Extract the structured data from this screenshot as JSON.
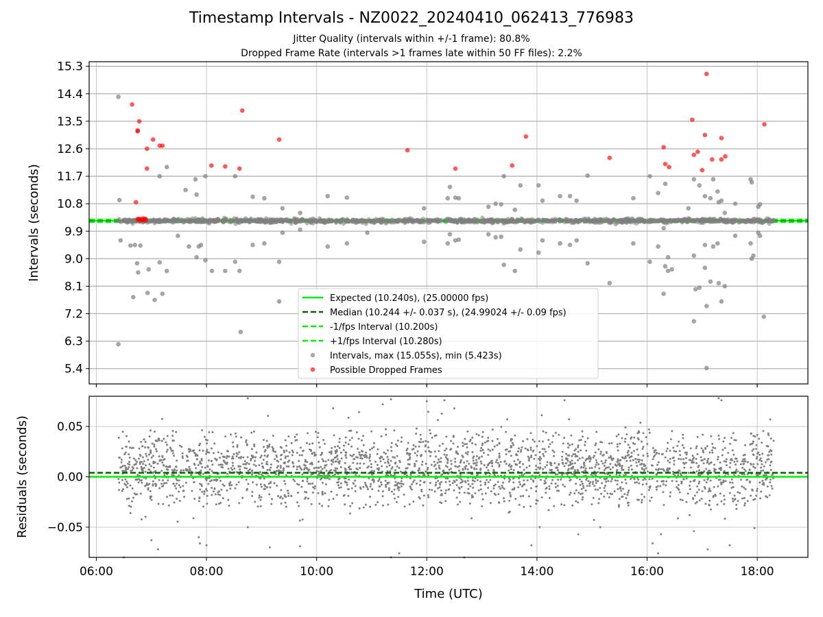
{
  "figure": {
    "title": "Timestamp Intervals - NZ0022_20240410_062413_776983",
    "subtitle_1": "Jitter Quality (intervals within +/-1 frame): 80.8%",
    "subtitle_2": "Dropped Frame Rate (intervals >1 frames late within 50 FF files): 2.2%"
  },
  "colors": {
    "expected": "#00ee00",
    "median": "#006400",
    "interval_bounds": "#00ee00",
    "intervals": "#808080",
    "dropped": "#ff0000",
    "grid": "#b0b0b0"
  },
  "chart_data": [
    {
      "type": "scatter",
      "id": "intervals",
      "ylabel": "Intervals (seconds)",
      "xlabel": "",
      "xlim_hours": [
        5.87,
        18.92
      ],
      "ylim": [
        4.9,
        15.45
      ],
      "yticks": [
        "5.4",
        "6.3",
        "7.2",
        "8.1",
        "9.0",
        "9.9",
        "10.8",
        "11.7",
        "12.6",
        "13.5",
        "14.4",
        "15.3"
      ],
      "grid": true,
      "legend_position": "lower center",
      "lines": [
        {
          "name": "Expected (10.240s), (25.00000 fps)",
          "y": 10.24,
          "style": "solid",
          "color_key": "expected"
        },
        {
          "name": "Median (10.244 +/- 0.037 s), (24.99024 +/- 0.09 fps)",
          "y": 10.244,
          "style": "dashed",
          "color_key": "median"
        },
        {
          "name": "-1/fps Interval (10.200s)",
          "y": 10.2,
          "style": "dashed",
          "color_key": "interval_bounds"
        },
        {
          "name": "+1/fps Interval (10.280s)",
          "y": 10.28,
          "style": "dashed",
          "color_key": "interval_bounds"
        }
      ],
      "series": [
        {
          "name": "Intervals, max (15.055s), min (5.423s)",
          "color_key": "intervals",
          "points": [
            [
              6.4,
              14.3
            ],
            [
              6.42,
              10.92
            ],
            [
              6.44,
              9.6
            ],
            [
              6.4,
              6.2
            ],
            [
              6.62,
              9.43
            ],
            [
              6.67,
              7.74
            ],
            [
              6.7,
              9.45
            ],
            [
              6.74,
              8.85
            ],
            [
              6.76,
              8.55
            ],
            [
              6.8,
              9.43
            ],
            [
              6.93,
              7.88
            ],
            [
              6.95,
              8.65
            ],
            [
              7.06,
              7.65
            ],
            [
              7.15,
              8.88
            ],
            [
              7.15,
              11.7
            ],
            [
              7.2,
              7.85
            ],
            [
              7.28,
              8.6
            ],
            [
              7.28,
              12.0
            ],
            [
              7.48,
              9.75
            ],
            [
              7.62,
              11.25
            ],
            [
              7.68,
              9.4
            ],
            [
              7.8,
              11.6
            ],
            [
              7.82,
              9.05
            ],
            [
              7.82,
              11.1
            ],
            [
              7.86,
              9.4
            ],
            [
              7.9,
              9.45
            ],
            [
              7.92,
              10.22
            ],
            [
              7.98,
              8.95
            ],
            [
              7.98,
              11.7
            ],
            [
              8.1,
              8.6
            ],
            [
              8.34,
              8.6
            ],
            [
              8.52,
              8.9
            ],
            [
              8.52,
              11.7
            ],
            [
              8.6,
              8.6
            ],
            [
              8.62,
              6.6
            ],
            [
              8.84,
              9.45
            ],
            [
              8.84,
              11.03
            ],
            [
              9.05,
              9.5
            ],
            [
              9.05,
              10.98
            ],
            [
              9.32,
              8.9
            ],
            [
              9.32,
              7.6
            ],
            [
              9.38,
              9.85
            ],
            [
              9.38,
              10.65
            ],
            [
              9.7,
              9.95
            ],
            [
              9.7,
              10.5
            ],
            [
              10.2,
              9.4
            ],
            [
              10.2,
              11.05
            ],
            [
              10.55,
              9.5
            ],
            [
              10.55,
              11.0
            ],
            [
              10.92,
              9.85
            ],
            [
              11.95,
              9.55
            ],
            [
              11.95,
              10.65
            ],
            [
              12.38,
              9.5
            ],
            [
              12.38,
              10.98
            ],
            [
              12.42,
              11.35
            ],
            [
              12.42,
              9.8
            ],
            [
              12.52,
              11.0
            ],
            [
              12.52,
              9.6
            ],
            [
              12.58,
              10.98
            ],
            [
              12.58,
              9.62
            ],
            [
              13.12,
              10.7
            ],
            [
              13.12,
              9.8
            ],
            [
              13.25,
              10.8
            ],
            [
              13.25,
              9.7
            ],
            [
              13.35,
              9.72
            ],
            [
              13.35,
              10.78
            ],
            [
              13.4,
              11.7
            ],
            [
              13.4,
              8.8
            ],
            [
              13.6,
              8.6
            ],
            [
              13.6,
              10.6
            ],
            [
              13.7,
              11.4
            ],
            [
              13.7,
              9.3
            ],
            [
              14.03,
              9.2
            ],
            [
              14.03,
              11.4
            ],
            [
              14.1,
              9.6
            ],
            [
              14.1,
              10.9
            ],
            [
              14.42,
              9.5
            ],
            [
              14.42,
              11.05
            ],
            [
              14.6,
              9.45
            ],
            [
              14.6,
              11.05
            ],
            [
              14.72,
              9.6
            ],
            [
              14.72,
              10.9
            ],
            [
              14.92,
              8.85
            ],
            [
              14.92,
              11.72
            ],
            [
              15.32,
              8.2
            ],
            [
              15.75,
              9.5
            ],
            [
              15.75,
              10.98
            ],
            [
              16.05,
              8.9
            ],
            [
              16.05,
              11.7
            ],
            [
              16.2,
              9.4
            ],
            [
              16.2,
              11.15
            ],
            [
              16.3,
              7.85
            ],
            [
              16.33,
              8.75
            ],
            [
              16.33,
              11.45
            ],
            [
              16.38,
              8.6
            ],
            [
              16.38,
              9.05
            ],
            [
              16.3,
              10.0
            ],
            [
              16.45,
              8.65
            ],
            [
              16.75,
              10.65
            ],
            [
              16.85,
              9.1
            ],
            [
              16.85,
              11.6
            ],
            [
              16.85,
              6.95
            ],
            [
              16.88,
              8.0
            ],
            [
              16.95,
              11.4
            ],
            [
              16.95,
              8.05
            ],
            [
              17.05,
              9.45
            ],
            [
              17.05,
              8.7
            ],
            [
              17.05,
              11.05
            ],
            [
              17.08,
              5.42
            ],
            [
              17.08,
              7.45
            ],
            [
              17.15,
              10.98
            ],
            [
              17.15,
              8.25
            ],
            [
              17.2,
              9.4
            ],
            [
              17.2,
              11.6
            ],
            [
              17.28,
              9.5
            ],
            [
              17.28,
              11.2
            ],
            [
              17.3,
              10.85
            ],
            [
              17.3,
              8.2
            ],
            [
              17.35,
              7.6
            ],
            [
              17.35,
              10.9
            ],
            [
              17.41,
              8.1
            ],
            [
              17.41,
              10.5
            ],
            [
              17.6,
              10.8
            ],
            [
              17.6,
              9.75
            ],
            [
              17.88,
              11.6
            ],
            [
              17.88,
              9.5
            ],
            [
              17.9,
              9.0
            ],
            [
              17.9,
              11.5
            ],
            [
              17.93,
              9.1
            ],
            [
              18.02,
              9.85
            ],
            [
              18.02,
              10.7
            ],
            [
              18.05,
              10.78
            ],
            [
              18.05,
              9.75
            ],
            [
              18.12,
              7.1
            ]
          ]
        },
        {
          "name": "Possible Dropped Frames",
          "color_key": "dropped",
          "points": [
            [
              6.65,
              14.05
            ],
            [
              6.75,
              13.2
            ],
            [
              6.75,
              13.17
            ],
            [
              6.78,
              13.5
            ],
            [
              6.72,
              10.85
            ],
            [
              6.75,
              10.28
            ],
            [
              6.77,
              10.3
            ],
            [
              6.79,
              10.26
            ],
            [
              6.8,
              10.28
            ],
            [
              6.81,
              10.29
            ],
            [
              6.83,
              10.27
            ],
            [
              6.85,
              10.32
            ],
            [
              6.87,
              10.26
            ],
            [
              6.88,
              10.3
            ],
            [
              6.9,
              10.26
            ],
            [
              6.92,
              12.6
            ],
            [
              6.92,
              11.95
            ],
            [
              7.03,
              12.9
            ],
            [
              7.15,
              12.7
            ],
            [
              7.2,
              12.7
            ],
            [
              8.09,
              12.05
            ],
            [
              8.34,
              12.02
            ],
            [
              8.6,
              11.95
            ],
            [
              8.65,
              13.85
            ],
            [
              9.32,
              12.9
            ],
            [
              11.65,
              12.55
            ],
            [
              12.52,
              11.95
            ],
            [
              13.55,
              12.05
            ],
            [
              13.8,
              13.0
            ],
            [
              15.32,
              12.3
            ],
            [
              16.3,
              12.65
            ],
            [
              16.33,
              12.1
            ],
            [
              16.4,
              12.0
            ],
            [
              16.82,
              13.55
            ],
            [
              16.85,
              12.4
            ],
            [
              16.92,
              12.5
            ],
            [
              17.0,
              11.9
            ],
            [
              17.05,
              13.05
            ],
            [
              17.08,
              15.05
            ],
            [
              17.18,
              12.25
            ],
            [
              17.35,
              12.95
            ],
            [
              17.35,
              12.25
            ],
            [
              17.42,
              12.35
            ],
            [
              18.13,
              13.4
            ]
          ]
        }
      ]
    },
    {
      "type": "scatter",
      "id": "residuals",
      "ylabel": "Residuals (seconds)",
      "xlabel": "Time (UTC)",
      "xlim_hours": [
        5.87,
        18.92
      ],
      "ylim": [
        -0.08,
        0.08
      ],
      "yticks": [
        "−0.05",
        "0.00",
        "0.05"
      ],
      "xticks": [
        "06:00",
        "08:00",
        "10:00",
        "12:00",
        "14:00",
        "16:00",
        "18:00"
      ],
      "grid": true,
      "lines": [
        {
          "y": 0.0,
          "style": "solid",
          "color_key": "expected"
        },
        {
          "y": 0.004,
          "style": "dashed",
          "color_key": "median"
        }
      ],
      "series": [
        {
          "distribution": "dense",
          "x_range_hours": [
            6.4,
            18.3
          ],
          "core_range": [
            -0.03,
            0.045
          ],
          "color_key": "intervals",
          "outliers": [
            [
              6.5,
              -0.08
            ],
            [
              7.0,
              -0.063
            ],
            [
              7.12,
              -0.072
            ],
            [
              7.86,
              -0.06
            ],
            [
              7.88,
              -0.066
            ],
            [
              8.0,
              -0.068
            ],
            [
              8.75,
              0.078
            ],
            [
              8.75,
              -0.05
            ],
            [
              9.15,
              -0.07
            ],
            [
              9.7,
              -0.069
            ],
            [
              10.3,
              0.068
            ],
            [
              11.2,
              0.072
            ],
            [
              11.35,
              0.077
            ],
            [
              11.35,
              -0.08
            ],
            [
              11.5,
              -0.076
            ],
            [
              12.0,
              0.075
            ],
            [
              12.32,
              0.076
            ],
            [
              12.5,
              0.068
            ],
            [
              12.68,
              -0.08
            ],
            [
              13.9,
              -0.068
            ],
            [
              14.05,
              -0.05
            ],
            [
              14.5,
              0.076
            ],
            [
              14.75,
              -0.057
            ],
            [
              15.15,
              -0.05
            ],
            [
              16.1,
              -0.066
            ],
            [
              16.2,
              -0.076
            ],
            [
              16.25,
              -0.057
            ],
            [
              16.85,
              -0.054
            ],
            [
              17.1,
              -0.072
            ],
            [
              17.3,
              0.078
            ],
            [
              17.35,
              0.076
            ],
            [
              17.5,
              -0.068
            ],
            [
              17.95,
              -0.051
            ]
          ]
        }
      ]
    }
  ]
}
